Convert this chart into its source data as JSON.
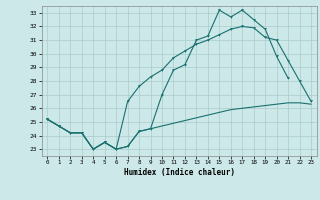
{
  "xlabel": "Humidex (Indice chaleur)",
  "bg_color": "#cce8e8",
  "grid_color": "#aacccc",
  "line_color": "#1a7070",
  "xlim": [
    -0.5,
    23.5
  ],
  "ylim": [
    22.5,
    33.5
  ],
  "yticks": [
    23,
    24,
    25,
    26,
    27,
    28,
    29,
    30,
    31,
    32,
    33
  ],
  "xticks": [
    0,
    1,
    2,
    3,
    4,
    5,
    6,
    7,
    8,
    9,
    10,
    11,
    12,
    13,
    14,
    15,
    16,
    17,
    18,
    19,
    20,
    21,
    22,
    23
  ],
  "line1_x": [
    0,
    1,
    2,
    3,
    4,
    5,
    6,
    7,
    8,
    9,
    10,
    11,
    12,
    13,
    14,
    15,
    16,
    17,
    18,
    19,
    20,
    21
  ],
  "line1_y": [
    25.2,
    24.7,
    24.2,
    24.2,
    23.0,
    23.5,
    23.0,
    23.2,
    24.3,
    24.5,
    27.0,
    28.8,
    29.2,
    31.0,
    31.3,
    33.2,
    32.7,
    33.2,
    32.5,
    31.8,
    29.8,
    28.2
  ],
  "line2_x": [
    0,
    1,
    2,
    3,
    4,
    5,
    6,
    7,
    8,
    9,
    10,
    11,
    12,
    13,
    14,
    15,
    16,
    17,
    18,
    19,
    20,
    21,
    22,
    23
  ],
  "line2_y": [
    25.2,
    24.7,
    24.2,
    24.2,
    23.0,
    23.5,
    23.0,
    26.5,
    27.6,
    28.3,
    28.8,
    29.7,
    30.2,
    30.7,
    31.0,
    31.4,
    31.8,
    32.0,
    31.9,
    31.2,
    31.0,
    29.5,
    28.0,
    26.5
  ],
  "line3_x": [
    0,
    1,
    2,
    3,
    4,
    5,
    6,
    7,
    8,
    9,
    10,
    11,
    12,
    13,
    14,
    15,
    16,
    17,
    18,
    19,
    20,
    21,
    22,
    23
  ],
  "line3_y": [
    25.2,
    24.7,
    24.2,
    24.2,
    23.0,
    23.5,
    23.0,
    23.2,
    24.3,
    24.5,
    24.7,
    24.9,
    25.1,
    25.3,
    25.5,
    25.7,
    25.9,
    26.0,
    26.1,
    26.2,
    26.3,
    26.4,
    26.4,
    26.3
  ]
}
